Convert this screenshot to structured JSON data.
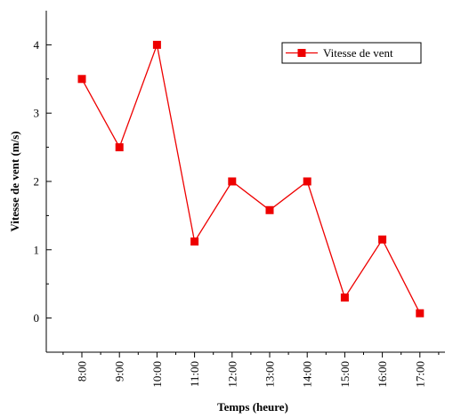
{
  "chart_data": {
    "type": "line",
    "title": "",
    "xlabel": "Temps (heure)",
    "ylabel": "Vitesse de vent (m/s)",
    "categories": [
      "8:00",
      "9:00",
      "10:00",
      "11:00",
      "12:00",
      "13:00",
      "14:00",
      "15:00",
      "16:00",
      "17:00"
    ],
    "ylim": [
      -0.5,
      4.5
    ],
    "yticks": [
      "0",
      "1",
      "2",
      "3",
      "4"
    ],
    "series": [
      {
        "name": "Vitesse de vent",
        "values": [
          3.5,
          2.5,
          4.0,
          1.12,
          2.0,
          1.58,
          2.0,
          0.3,
          1.15,
          0.07
        ],
        "color": "#ee0000",
        "marker": "square"
      }
    ],
    "legend": {
      "placement": "top-right"
    },
    "grid": false
  }
}
